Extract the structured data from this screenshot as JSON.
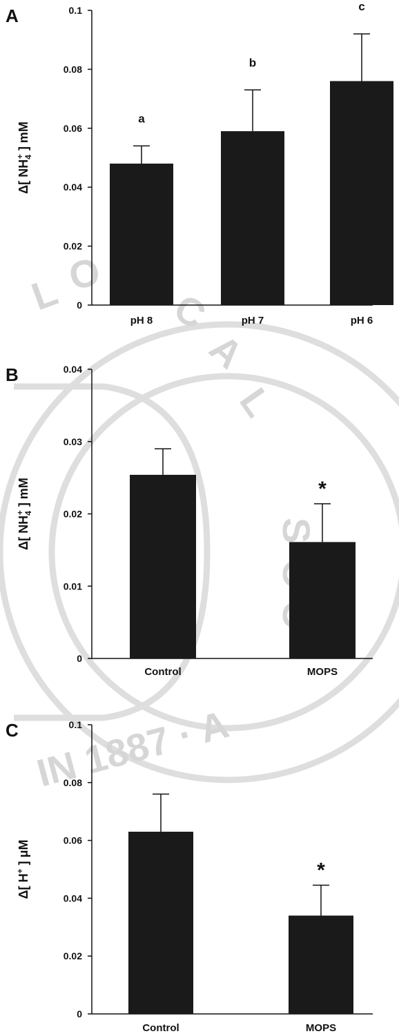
{
  "watermark": {
    "description_text": "LOGICAL SOC 1887",
    "color": "#d8d8d8"
  },
  "colors": {
    "bar": "#1a1a1a",
    "axis": "#111111",
    "background": "#ffffff"
  },
  "chart_data": [
    {
      "panel_label": "A",
      "type": "bar",
      "categories": [
        "pH 8",
        "pH 7",
        "pH 6"
      ],
      "values": [
        0.048,
        0.059,
        0.076
      ],
      "errors": [
        0.006,
        0.014,
        0.016
      ],
      "annotations": [
        "a",
        "b",
        "c"
      ],
      "ylabel": {
        "prefix": "Δ[ NH",
        "sub": "4",
        "sup": "+",
        "suffix": " ] mM"
      },
      "ylim": [
        0,
        0.1
      ],
      "yticks": [
        "0",
        "0.02",
        "0.04",
        "0.06",
        "0.08",
        "0.1"
      ],
      "grid": false
    },
    {
      "panel_label": "B",
      "type": "bar",
      "categories": [
        "Control",
        "MOPS"
      ],
      "values": [
        0.0254,
        0.0161
      ],
      "errors": [
        0.0036,
        0.0053
      ],
      "annotations": [
        "",
        "*"
      ],
      "ylabel": {
        "prefix": "Δ[ NH",
        "sub": "4",
        "sup": "+",
        "suffix": " ] mM"
      },
      "ylim": [
        0,
        0.04
      ],
      "yticks": [
        "0",
        "0.01",
        "0.02",
        "0.03",
        "0.04"
      ],
      "grid": false
    },
    {
      "panel_label": "C",
      "type": "bar",
      "categories": [
        "Control",
        "MOPS"
      ],
      "values": [
        0.063,
        0.034
      ],
      "errors": [
        0.013,
        0.0105
      ],
      "annotations": [
        "",
        "*"
      ],
      "ylabel": {
        "prefix": "Δ[ H",
        "sub": "",
        "sup": "+",
        "suffix": " ] μM"
      },
      "ylim": [
        0,
        0.1
      ],
      "yticks": [
        "0",
        "0.02",
        "0.04",
        "0.06",
        "0.08",
        "0.1"
      ],
      "grid": false
    }
  ]
}
